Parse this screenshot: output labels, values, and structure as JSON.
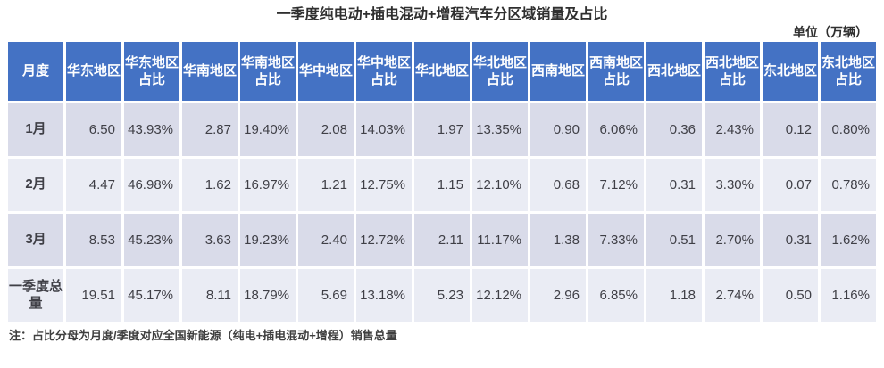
{
  "title": "一季度纯电动+插电混动+增程汽车分区域销量及占比",
  "unit_label": "单位（万辆）",
  "footnote": "注：占比分母为月度/季度对应全国新能源（纯电+插电混动+增程）销售总量",
  "colors": {
    "header_bg": "#4472C4",
    "header_text": "#FFFFFF",
    "row_band_dark": "#D9DBE9",
    "row_band_light": "#EAECF4",
    "body_text": "#3F3F46"
  },
  "chart_data": {
    "type": "table",
    "title": "一季度纯电动+插电混动+增程汽车分区域销量及占比",
    "unit": "万辆",
    "columns": [
      "月度",
      "华东地区",
      "华东地区占比",
      "华南地区",
      "华南地区占比",
      "华中地区",
      "华中地区占比",
      "华北地区",
      "华北地区占比",
      "西南地区",
      "西南地区占比",
      "西北地区",
      "西北地区占比",
      "东北地区",
      "东北地区占比"
    ],
    "rows": [
      {
        "label": "1月",
        "values": [
          "6.50",
          "43.93%",
          "2.87",
          "19.40%",
          "2.08",
          "14.03%",
          "1.97",
          "13.35%",
          "0.90",
          "6.06%",
          "0.36",
          "2.43%",
          "0.12",
          "0.80%"
        ]
      },
      {
        "label": "2月",
        "values": [
          "4.47",
          "46.98%",
          "1.62",
          "16.97%",
          "1.21",
          "12.75%",
          "1.15",
          "12.10%",
          "0.68",
          "7.12%",
          "0.31",
          "3.30%",
          "0.07",
          "0.78%"
        ]
      },
      {
        "label": "3月",
        "values": [
          "8.53",
          "45.23%",
          "3.63",
          "19.23%",
          "2.40",
          "12.72%",
          "2.11",
          "11.17%",
          "1.38",
          "7.33%",
          "0.51",
          "2.70%",
          "0.31",
          "1.62%"
        ]
      },
      {
        "label": "一季度总量",
        "values": [
          "19.51",
          "45.17%",
          "8.11",
          "18.79%",
          "5.69",
          "13.18%",
          "5.23",
          "12.12%",
          "2.96",
          "6.85%",
          "1.18",
          "2.74%",
          "0.50",
          "1.16%"
        ]
      }
    ]
  }
}
